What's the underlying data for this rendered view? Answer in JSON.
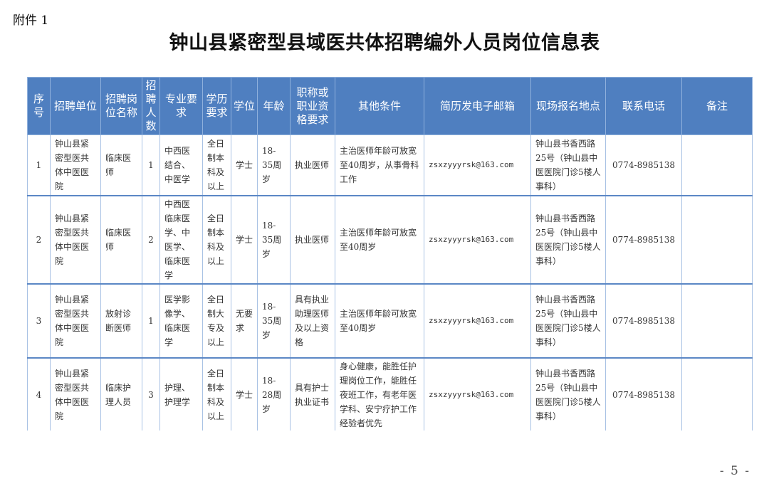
{
  "attachment_label": "附件 1",
  "title": "钟山县紧密型县域医共体招聘编外人员岗位信息表",
  "table": {
    "headers": [
      "序号",
      "招聘单位",
      "招聘岗位名称",
      "招聘人数",
      "专业要求",
      "学历要求",
      "学位",
      "年龄",
      "职称或职业资格要求",
      "其他条件",
      "简历发电子邮箱",
      "现场报名地点",
      "联系电话",
      "备注"
    ],
    "rows": [
      [
        "1",
        "钟山县紧密型医共体中医医院",
        "临床医师",
        "1",
        "中西医结合、中医学",
        "全日制本科及以上",
        "学士",
        "18-35周岁",
        "执业医师",
        "主治医师年龄可放宽至40周岁，从事骨科工作",
        "zsxzyyyrsk@163.com",
        "钟山县书香西路25号（钟山县中医医院门诊5楼人事科）",
        "0774-8985138",
        ""
      ],
      [
        "2",
        "钟山县紧密型医共体中医医院",
        "临床医师",
        "2",
        "中西医临床医学、中医学、临床医学",
        "全日制本科及以上",
        "学士",
        "18-35周岁",
        "执业医师",
        "主治医师年龄可放宽至40周岁",
        "zsxzyyyrsk@163.com",
        "钟山县书香西路25号（钟山县中医医院门诊5楼人事科）",
        "0774-8985138",
        ""
      ],
      [
        "3",
        "钟山县紧密型医共体中医医院",
        "放射诊断医师",
        "1",
        "医学影像学、临床医学",
        "全日制大专及以上",
        "无要求",
        "18-35周岁",
        "具有执业助理医师及以上资格",
        "主治医师年龄可放宽至40周岁",
        "zsxzyyyrsk@163.com",
        "钟山县书香西路25号（钟山县中医医院门诊5楼人事科）",
        "0774-8985138",
        ""
      ],
      [
        "4",
        "钟山县紧密型医共体中医医院",
        "临床护理人员",
        "3",
        "护理、护理学",
        "全日制本科及以上",
        "学士",
        "18-28周岁",
        "具有护士执业证书",
        "身心健康，能胜任护理岗位工作，能胜任夜班工作，有老年医学科、安宁疗护工作经验者优先",
        "zsxzyyyrsk@163.com",
        "钟山县书香西路25号（钟山县中医医院门诊5楼人事科）",
        "0774-8985138",
        ""
      ]
    ]
  },
  "page_number": "- 5 -",
  "colors": {
    "header_bg": "#4f7fc0",
    "row_border": "#5b87c5"
  }
}
